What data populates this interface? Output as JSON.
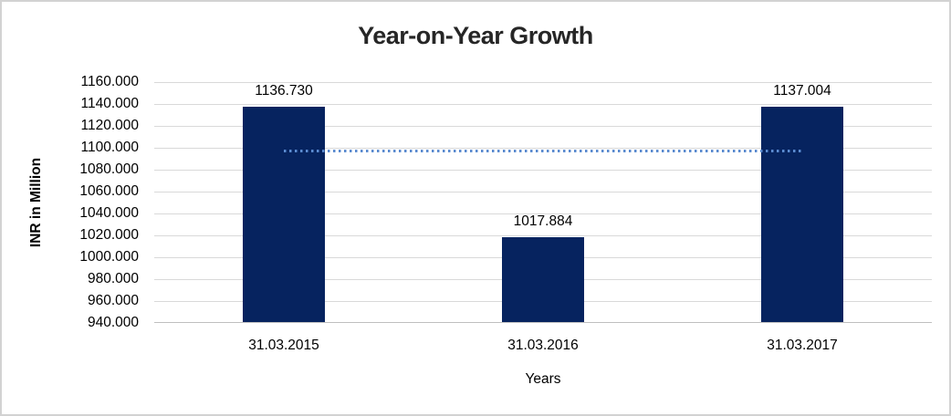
{
  "window": {
    "background_color": "#FFFFFF",
    "border_color": "#D2D2D2"
  },
  "chart_data": {
    "type": "bar",
    "title": "Year-on-Year Growth",
    "xlabel": "Years",
    "ylabel": "INR in Million",
    "categories": [
      "31.03.2015",
      "31.03.2016",
      "31.03.2017"
    ],
    "values": [
      1136.73,
      1017.884,
      1137.004
    ],
    "data_labels": [
      "1136.730",
      "1017.884",
      "1137.004"
    ],
    "ylim": [
      940,
      1160
    ],
    "ytick_step": 20,
    "ytick_labels": [
      "1160.000",
      "1140.000",
      "1120.000",
      "1100.000",
      "1080.000",
      "1060.000",
      "1040.000",
      "1020.000",
      "1000.000",
      "980.000",
      "960.000",
      "940.000"
    ],
    "grid": true,
    "legend": "none",
    "bar_color": "#06235F",
    "title_color": "#262626",
    "gridline_color": "#D9D9D9",
    "axis_line_color": "#BFBFBF",
    "trendline": {
      "type": "linear",
      "style": "dotted",
      "color": "#5B8BD0",
      "start_value": 1097.0,
      "end_value": 1097.3
    }
  }
}
